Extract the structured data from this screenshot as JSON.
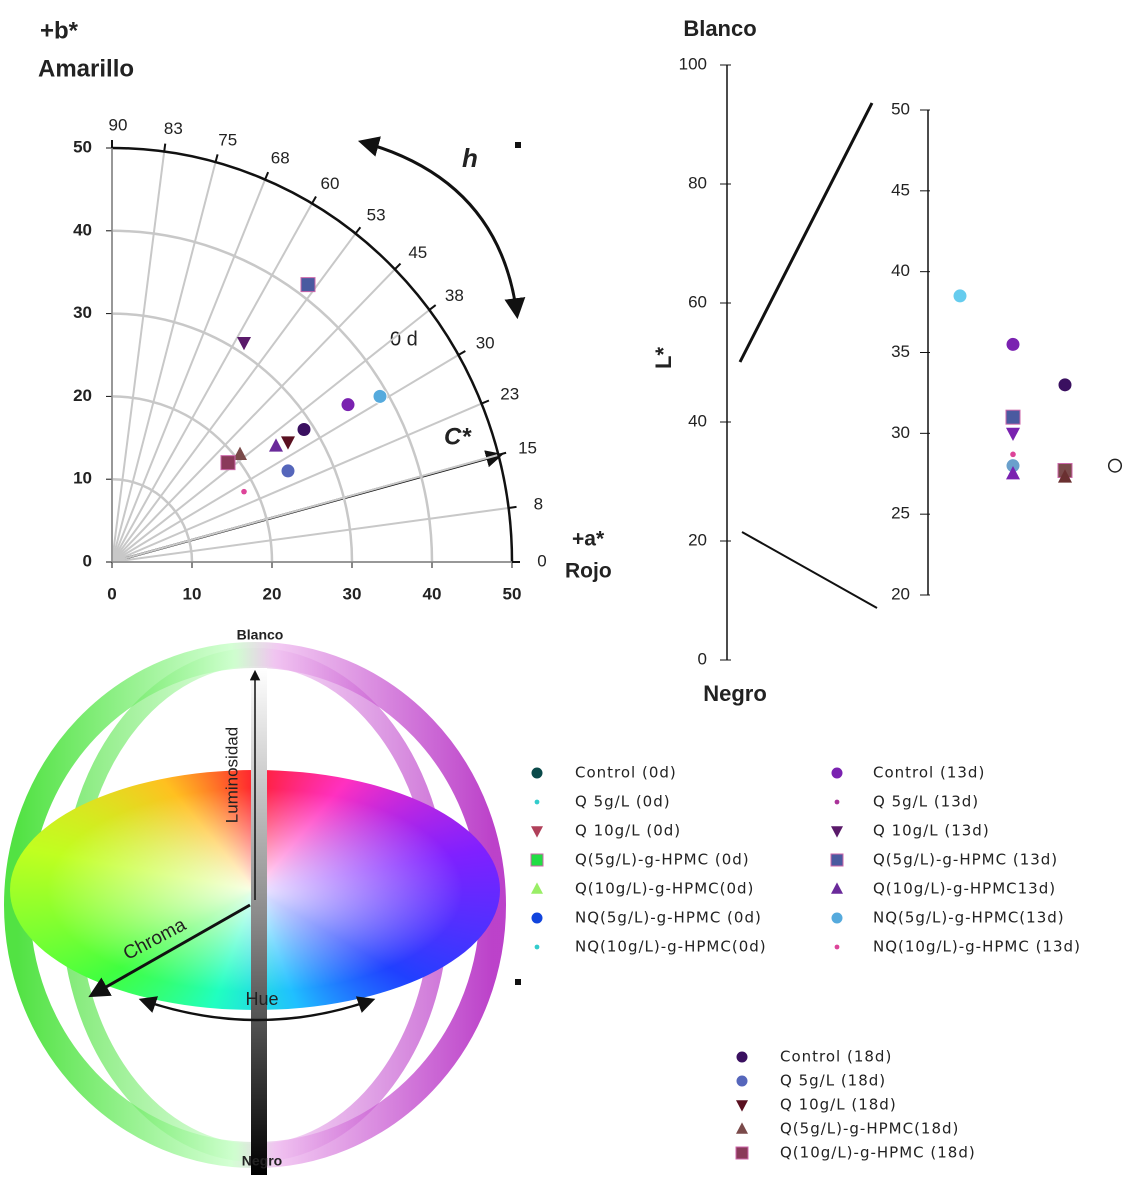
{
  "chart_data": [
    {
      "type": "scatter",
      "y_title": "+b*",
      "y_subtitle": "Amarillo",
      "x_title": "+a*",
      "x_subtitle": "Rojo",
      "hue_label": "h",
      "chroma_label": "C*",
      "day_label": "0 d",
      "xlim": [
        0,
        50
      ],
      "ylim": [
        0,
        50
      ],
      "xticks": [
        0,
        10,
        20,
        30,
        40,
        50
      ],
      "yticks": [
        0,
        10,
        20,
        30,
        40,
        50
      ],
      "hue_ticks": [
        0,
        {
          "value": 7.5,
          "label": "8"
        },
        15,
        {
          "value": 22.5,
          "label": "23"
        },
        30,
        {
          "value": 37.5,
          "label": "38"
        },
        45,
        {
          "value": 52.5,
          "label": "53"
        },
        60,
        {
          "value": 67.5,
          "label": "68"
        },
        75,
        {
          "value": 82.5,
          "label": "83"
        },
        90
      ],
      "series": [
        {
          "name": "Control (0d)",
          "color": "#0b4a4a",
          "marker": "circle",
          "x": [],
          "values": []
        },
        {
          "name": "Q 5g/L (0d)",
          "color": "#33cccc",
          "marker": "dot",
          "x": [],
          "values": []
        },
        {
          "name": "Q 10g/L (0d)",
          "color": "#b0405a",
          "marker": "triangle-down",
          "x": [],
          "values": []
        },
        {
          "name": "Q(5g/L)-g-HPMC  (0d)",
          "color": "#22dd44",
          "marker": "square",
          "x": [],
          "values": []
        },
        {
          "name": "Q(10g/L)-g-HPMC(0d)",
          "color": "#99ee66",
          "marker": "triangle",
          "x": [],
          "values": []
        },
        {
          "name": "NQ(5g/L)-g-HPMC (0d)",
          "color": "#1144dd",
          "marker": "circle",
          "x": [],
          "values": []
        },
        {
          "name": "NQ(10g/L)-g-HPMC(0d)",
          "color": "#33cccc",
          "marker": "dot",
          "x": [],
          "values": []
        },
        {
          "name": "Control (13d)",
          "color": "#7a22b0",
          "marker": "circle",
          "x": [
            29.5
          ],
          "values": [
            19
          ]
        },
        {
          "name": "Q 5g/L (13d)",
          "color": "#aa3399",
          "marker": "dot",
          "x": [],
          "values": []
        },
        {
          "name": "Q 10g/L (13d)",
          "color": "#5a1a6a",
          "marker": "triangle-down",
          "x": [
            16.5
          ],
          "values": [
            26.5
          ]
        },
        {
          "name": "Q(5g/L)-g-HPMC (13d)",
          "color": "#4a5aa0",
          "marker": "square",
          "x": [
            24.5
          ],
          "values": [
            33.5
          ]
        },
        {
          "name": "Q(10g/L)-g-HPMC13d)",
          "color": "#6a2a9a",
          "marker": "triangle",
          "x": [
            20.5
          ],
          "values": [
            14
          ]
        },
        {
          "name": "NQ(5g/L)-g-HPMC(13d)",
          "color": "#55aadd",
          "marker": "circle",
          "x": [
            33.5
          ],
          "values": [
            20
          ]
        },
        {
          "name": "NQ(10g/L)-g-HPMC (13d)",
          "color": "#dd4499",
          "marker": "dot",
          "x": [
            16.5
          ],
          "values": [
            8.5
          ]
        },
        {
          "name": "Control (18d)",
          "color": "#3a1060",
          "marker": "circle",
          "x": [
            24
          ],
          "values": [
            16
          ]
        },
        {
          "name": "Q 5g/L (18d)",
          "color": "#5566bb",
          "marker": "circle",
          "x": [
            22
          ],
          "values": [
            11
          ]
        },
        {
          "name": "Q 10g/L (18d)",
          "color": "#5a1020",
          "marker": "triangle-down",
          "x": [
            22
          ],
          "values": [
            14.5
          ]
        },
        {
          "name": "Q(5g/L)-g-HPMC(18d)",
          "color": "#7a4a4a",
          "marker": "triangle",
          "x": [
            16
          ],
          "values": [
            13
          ]
        },
        {
          "name": "Q(10g/L)-g-HPMC (18d)",
          "color": "#8a3a5a",
          "marker": "square",
          "x": [
            14.5
          ],
          "values": [
            12
          ]
        }
      ]
    },
    {
      "type": "scatter",
      "top_label": "Blanco",
      "bottom_label": "Negro",
      "y_label": "L*",
      "ylim": [
        0,
        100
      ],
      "yticks": [
        0,
        20,
        40,
        60,
        80,
        100
      ],
      "y2lim": [
        20,
        50
      ],
      "y2ticks": [
        20,
        25,
        30,
        35,
        40,
        45,
        50
      ],
      "series": [
        {
          "axis": "y2",
          "color": "#66ccee",
          "marker": "circle",
          "values": [
            38.5
          ]
        },
        {
          "axis": "y2",
          "color": "#7a22b0",
          "marker": "circle",
          "values": [
            35.5
          ]
        },
        {
          "axis": "y2",
          "color": "#4a5aa0",
          "marker": "square",
          "values": [
            31
          ]
        },
        {
          "axis": "y2",
          "color": "#7a22b0",
          "marker": "triangle-down",
          "values": [
            30
          ]
        },
        {
          "axis": "y2",
          "color": "#dd4499",
          "marker": "dot",
          "values": [
            28.7
          ]
        },
        {
          "axis": "y2",
          "color": "#6aa0cc",
          "marker": "circle",
          "values": [
            28
          ]
        },
        {
          "axis": "y2",
          "color": "#7a22b0",
          "marker": "triangle",
          "values": [
            27.5
          ]
        },
        {
          "axis": "y2",
          "color": "#3a1060",
          "marker": "circle",
          "values": [
            33
          ]
        },
        {
          "axis": "y2",
          "color": "#7a4a4a",
          "marker": "square",
          "values": [
            27.7
          ]
        },
        {
          "axis": "y2",
          "color": "#6a3030",
          "marker": "triangle",
          "values": [
            27.3
          ]
        },
        {
          "axis": "y2",
          "color": "#222222",
          "marker": "circle-open",
          "values": [
            28
          ]
        }
      ]
    }
  ],
  "diagram": {
    "top": "Blanco",
    "bottom": "Negro",
    "lightness": "Luminosidad",
    "chroma": "Chroma",
    "hue": "Hue"
  }
}
